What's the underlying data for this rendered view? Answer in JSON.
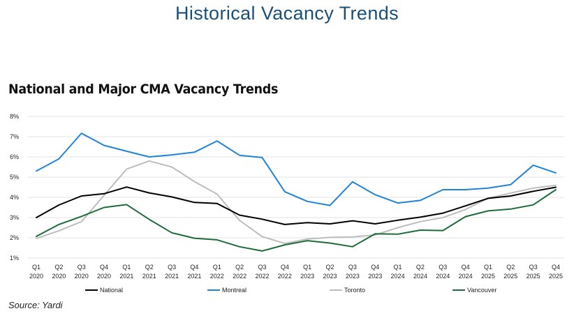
{
  "page": {
    "title": "Historical Vacancy Trends",
    "source": "Source: Yardi"
  },
  "chart_data": {
    "type": "line",
    "title": "National and Major CMA Vacancy Trends",
    "xlabel": "",
    "ylabel": "",
    "ylim": [
      1,
      8
    ],
    "yticks": [
      "1%",
      "2%",
      "3%",
      "4%",
      "5%",
      "6%",
      "7%",
      "8%"
    ],
    "grid": true,
    "legend_position": "bottom",
    "categories": [
      [
        "Q1",
        "2020"
      ],
      [
        "Q2",
        "2020"
      ],
      [
        "Q3",
        "2020"
      ],
      [
        "Q4",
        "2020"
      ],
      [
        "Q1",
        "2021"
      ],
      [
        "Q2",
        "2021"
      ],
      [
        "Q3",
        "2021"
      ],
      [
        "Q4",
        "2021"
      ],
      [
        "Q1",
        "2022"
      ],
      [
        "Q2",
        "2022"
      ],
      [
        "Q3",
        "2022"
      ],
      [
        "Q4",
        "2022"
      ],
      [
        "Q1",
        "2023"
      ],
      [
        "Q2",
        "2023"
      ],
      [
        "Q3",
        "2023"
      ],
      [
        "Q4",
        "2023"
      ],
      [
        "Q1",
        "2024"
      ],
      [
        "Q2",
        "2024"
      ],
      [
        "Q3",
        "2024"
      ],
      [
        "Q4",
        "2024"
      ],
      [
        "Q1",
        "2025"
      ],
      [
        "Q2",
        "2025"
      ],
      [
        "Q3",
        "2025"
      ],
      [
        "Q4",
        "2025"
      ]
    ],
    "series": [
      {
        "name": "National",
        "color": "#000000",
        "values": [
          3.0,
          3.62,
          4.07,
          4.18,
          4.51,
          4.22,
          4.02,
          3.75,
          3.7,
          3.12,
          2.92,
          2.66,
          2.75,
          2.69,
          2.84,
          2.69,
          2.87,
          3.02,
          3.22,
          3.58,
          3.95,
          4.07,
          4.3,
          4.5
        ]
      },
      {
        "name": "Montreal",
        "color": "#1f83d9",
        "values": [
          5.3,
          5.9,
          7.17,
          6.57,
          6.28,
          6.0,
          6.1,
          6.23,
          6.79,
          6.08,
          5.97,
          4.28,
          3.8,
          3.6,
          4.77,
          4.13,
          3.72,
          3.85,
          4.38,
          4.38,
          4.46,
          4.63,
          5.59,
          5.21
        ]
      },
      {
        "name": "Toronto",
        "color": "#bdbdbd",
        "values": [
          1.97,
          2.35,
          2.8,
          4.1,
          5.4,
          5.8,
          5.5,
          4.78,
          4.16,
          2.86,
          2.06,
          1.72,
          1.94,
          2.02,
          2.04,
          2.14,
          2.5,
          2.8,
          3.0,
          3.4,
          3.96,
          4.21,
          4.46,
          4.6
        ]
      },
      {
        "name": "Vancouver",
        "color": "#1d6b3a",
        "values": [
          2.07,
          2.66,
          3.06,
          3.5,
          3.64,
          2.91,
          2.25,
          1.98,
          1.9,
          1.56,
          1.35,
          1.65,
          1.86,
          1.74,
          1.56,
          2.2,
          2.18,
          2.38,
          2.36,
          3.05,
          3.33,
          3.42,
          3.63,
          4.38
        ]
      }
    ]
  }
}
